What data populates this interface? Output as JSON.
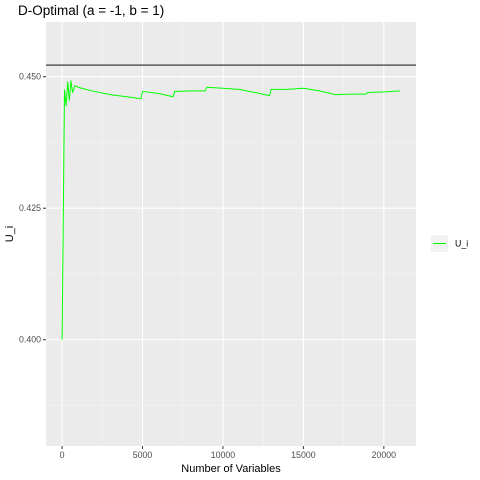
{
  "chart_data": {
    "type": "line",
    "title": "D-Optimal (a = -1, b = 1)",
    "xlabel": "Number of Variables",
    "ylabel": "U_i",
    "xlim": [
      -1000,
      22000
    ],
    "ylim": [
      0.3798,
      0.4604
    ],
    "x_ticks": [
      0,
      5000,
      10000,
      15000,
      20000
    ],
    "x_tick_labels": [
      "0",
      "5000",
      "10000",
      "15000",
      "20000"
    ],
    "y_ticks": [
      0.4,
      0.425,
      0.45
    ],
    "y_tick_labels": [
      "0.400",
      "0.425",
      "0.450"
    ],
    "grid": true,
    "legend_position": "right",
    "reference_line": {
      "y": 0.4522,
      "color": "#595959"
    },
    "series": [
      {
        "name": "U_i",
        "color": "#00ff00",
        "x": [
          0,
          150,
          250,
          350,
          450,
          550,
          650,
          800,
          1000,
          2000,
          3000,
          4000,
          4900,
          5000,
          6000,
          6900,
          7000,
          8000,
          8900,
          9000,
          10000,
          11000,
          12000,
          12900,
          13000,
          14000,
          15000,
          16000,
          17000,
          18000,
          18900,
          19000,
          20000,
          21000
        ],
        "y": [
          0.4,
          0.4475,
          0.4445,
          0.449,
          0.4455,
          0.4492,
          0.447,
          0.4483,
          0.448,
          0.4472,
          0.4466,
          0.4462,
          0.4458,
          0.4472,
          0.4468,
          0.4462,
          0.4472,
          0.4473,
          0.4473,
          0.448,
          0.4478,
          0.4476,
          0.447,
          0.4464,
          0.4476,
          0.4476,
          0.4478,
          0.4473,
          0.4466,
          0.4467,
          0.4467,
          0.447,
          0.4471,
          0.4473
        ]
      }
    ]
  }
}
